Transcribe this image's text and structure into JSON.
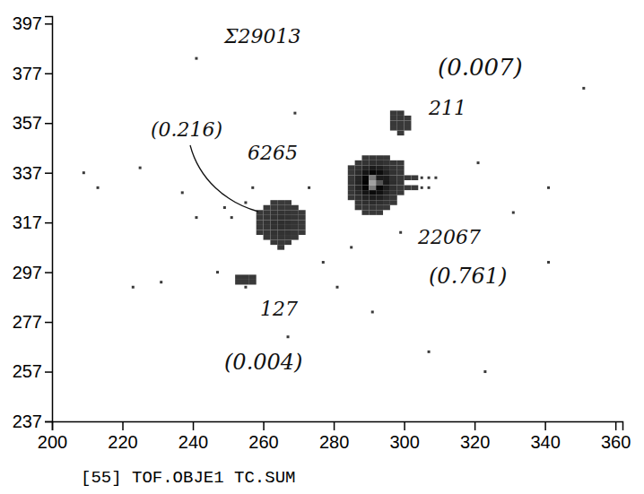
{
  "chart_data": {
    "type": "heatmap",
    "x_label": "[55] TOF.OBJE1 TC.SUM",
    "xlim": [
      200,
      362
    ],
    "xticks": [
      200,
      220,
      240,
      260,
      280,
      300,
      320,
      340,
      360
    ],
    "ylim": [
      237,
      400
    ],
    "yticks": [
      237,
      257,
      277,
      297,
      317,
      337,
      357,
      377,
      397
    ],
    "bin_width": 2,
    "bin_height": 2,
    "annotations": [
      "Σ29013",
      "(0.007)",
      "211",
      "(0.216)",
      "6265",
      "22067",
      "(0.761)",
      "127",
      "(0.004)"
    ],
    "cells": [
      [
        262,
        324,
        5
      ],
      [
        264,
        324,
        8
      ],
      [
        266,
        324,
        5
      ],
      [
        260,
        322,
        8
      ],
      [
        262,
        322,
        15
      ],
      [
        264,
        322,
        20
      ],
      [
        266,
        322,
        15
      ],
      [
        268,
        322,
        8
      ],
      [
        258,
        320,
        5
      ],
      [
        260,
        320,
        20
      ],
      [
        262,
        320,
        35
      ],
      [
        264,
        320,
        40
      ],
      [
        266,
        320,
        35
      ],
      [
        268,
        320,
        20
      ],
      [
        270,
        320,
        5
      ],
      [
        258,
        318,
        10
      ],
      [
        260,
        318,
        30
      ],
      [
        262,
        318,
        50
      ],
      [
        264,
        318,
        60
      ],
      [
        266,
        318,
        50
      ],
      [
        268,
        318,
        30
      ],
      [
        270,
        318,
        10
      ],
      [
        258,
        316,
        12
      ],
      [
        260,
        316,
        35
      ],
      [
        262,
        316,
        60
      ],
      [
        264,
        316,
        70
      ],
      [
        266,
        316,
        60
      ],
      [
        268,
        316,
        35
      ],
      [
        270,
        316,
        12
      ],
      [
        258,
        314,
        10
      ],
      [
        260,
        314,
        30
      ],
      [
        262,
        314,
        55
      ],
      [
        264,
        314,
        65
      ],
      [
        266,
        314,
        55
      ],
      [
        268,
        314,
        30
      ],
      [
        270,
        314,
        8
      ],
      [
        258,
        312,
        8
      ],
      [
        260,
        312,
        25
      ],
      [
        262,
        312,
        45
      ],
      [
        264,
        312,
        50
      ],
      [
        266,
        312,
        45
      ],
      [
        268,
        312,
        25
      ],
      [
        270,
        312,
        6
      ],
      [
        260,
        310,
        15
      ],
      [
        262,
        310,
        30
      ],
      [
        264,
        310,
        35
      ],
      [
        266,
        310,
        30
      ],
      [
        268,
        310,
        15
      ],
      [
        262,
        308,
        10
      ],
      [
        264,
        308,
        15
      ],
      [
        266,
        308,
        10
      ],
      [
        264,
        306,
        4
      ],
      [
        288,
        342,
        10
      ],
      [
        290,
        342,
        20
      ],
      [
        292,
        342,
        20
      ],
      [
        294,
        342,
        10
      ],
      [
        286,
        340,
        15
      ],
      [
        288,
        340,
        40
      ],
      [
        290,
        340,
        70
      ],
      [
        292,
        340,
        70
      ],
      [
        294,
        340,
        40
      ],
      [
        296,
        340,
        20
      ],
      [
        298,
        340,
        8
      ],
      [
        284,
        338,
        10
      ],
      [
        286,
        338,
        50
      ],
      [
        288,
        338,
        120
      ],
      [
        290,
        338,
        180
      ],
      [
        292,
        338,
        150
      ],
      [
        294,
        338,
        80
      ],
      [
        296,
        338,
        30
      ],
      [
        298,
        338,
        10
      ],
      [
        284,
        336,
        20
      ],
      [
        286,
        336,
        90
      ],
      [
        288,
        336,
        220
      ],
      [
        290,
        336,
        300
      ],
      [
        292,
        336,
        260
      ],
      [
        294,
        336,
        140
      ],
      [
        296,
        336,
        50
      ],
      [
        298,
        336,
        15
      ],
      [
        284,
        334,
        25
      ],
      [
        286,
        334,
        120
      ],
      [
        288,
        334,
        300
      ],
      [
        290,
        334,
        400
      ],
      [
        292,
        334,
        350
      ],
      [
        294,
        334,
        180
      ],
      [
        296,
        334,
        60
      ],
      [
        298,
        334,
        20
      ],
      [
        284,
        332,
        30
      ],
      [
        286,
        332,
        130
      ],
      [
        288,
        332,
        320
      ],
      [
        290,
        332,
        420
      ],
      [
        292,
        332,
        380
      ],
      [
        294,
        332,
        190
      ],
      [
        296,
        332,
        70
      ],
      [
        298,
        332,
        25
      ],
      [
        284,
        330,
        25
      ],
      [
        286,
        330,
        120
      ],
      [
        288,
        330,
        300
      ],
      [
        290,
        330,
        400
      ],
      [
        292,
        330,
        340
      ],
      [
        294,
        330,
        170
      ],
      [
        296,
        330,
        60
      ],
      [
        298,
        330,
        20
      ],
      [
        284,
        328,
        20
      ],
      [
        286,
        328,
        90
      ],
      [
        288,
        328,
        220
      ],
      [
        290,
        328,
        280
      ],
      [
        292,
        328,
        240
      ],
      [
        294,
        328,
        130
      ],
      [
        296,
        328,
        50
      ],
      [
        298,
        328,
        15
      ],
      [
        284,
        326,
        12
      ],
      [
        286,
        326,
        60
      ],
      [
        288,
        326,
        140
      ],
      [
        290,
        326,
        170
      ],
      [
        292,
        326,
        150
      ],
      [
        294,
        326,
        80
      ],
      [
        296,
        326,
        25
      ],
      [
        286,
        324,
        30
      ],
      [
        288,
        324,
        70
      ],
      [
        290,
        324,
        90
      ],
      [
        292,
        324,
        70
      ],
      [
        294,
        324,
        35
      ],
      [
        296,
        324,
        10
      ],
      [
        286,
        322,
        15
      ],
      [
        288,
        322,
        30
      ],
      [
        290,
        322,
        35
      ],
      [
        292,
        322,
        25
      ],
      [
        294,
        322,
        10
      ],
      [
        288,
        320,
        10
      ],
      [
        290,
        320,
        12
      ],
      [
        292,
        320,
        8
      ],
      [
        300,
        334,
        8
      ],
      [
        302,
        334,
        5
      ],
      [
        304,
        334,
        3
      ],
      [
        306,
        334,
        2
      ],
      [
        308,
        334,
        1
      ],
      [
        300,
        330,
        6
      ],
      [
        302,
        330,
        4
      ],
      [
        304,
        330,
        2
      ],
      [
        306,
        330,
        1
      ],
      [
        296,
        360,
        4
      ],
      [
        298,
        360,
        6
      ],
      [
        296,
        358,
        8
      ],
      [
        298,
        358,
        12
      ],
      [
        300,
        358,
        6
      ],
      [
        296,
        356,
        10
      ],
      [
        298,
        356,
        15
      ],
      [
        300,
        356,
        8
      ],
      [
        296,
        354,
        8
      ],
      [
        298,
        354,
        12
      ],
      [
        300,
        354,
        5
      ],
      [
        298,
        352,
        4
      ],
      [
        252,
        294,
        8
      ],
      [
        254,
        294,
        12
      ],
      [
        256,
        294,
        6
      ],
      [
        252,
        292,
        6
      ],
      [
        254,
        292,
        10
      ],
      [
        256,
        292,
        5
      ],
      [
        254,
        290,
        3
      ],
      [
        208,
        336,
        1
      ],
      [
        212,
        330,
        1
      ],
      [
        224,
        338,
        1
      ],
      [
        236,
        328,
        1
      ],
      [
        240,
        318,
        1
      ],
      [
        246,
        296,
        1
      ],
      [
        230,
        292,
        1
      ],
      [
        222,
        290,
        1
      ],
      [
        276,
        300,
        1
      ],
      [
        280,
        290,
        1
      ],
      [
        284,
        306,
        1
      ],
      [
        298,
        312,
        1
      ],
      [
        340,
        300,
        1
      ],
      [
        320,
        340,
        1
      ],
      [
        330,
        320,
        1
      ],
      [
        340,
        330,
        1
      ],
      [
        322,
        256,
        1
      ],
      [
        306,
        264,
        1
      ],
      [
        268,
        360,
        1
      ],
      [
        240,
        382,
        1
      ],
      [
        350,
        370,
        1
      ],
      [
        266,
        270,
        1
      ],
      [
        290,
        280,
        1
      ],
      [
        254,
        324,
        1
      ],
      [
        256,
        330,
        1
      ],
      [
        272,
        330,
        1
      ],
      [
        250,
        318,
        1
      ],
      [
        248,
        322,
        1
      ]
    ]
  }
}
